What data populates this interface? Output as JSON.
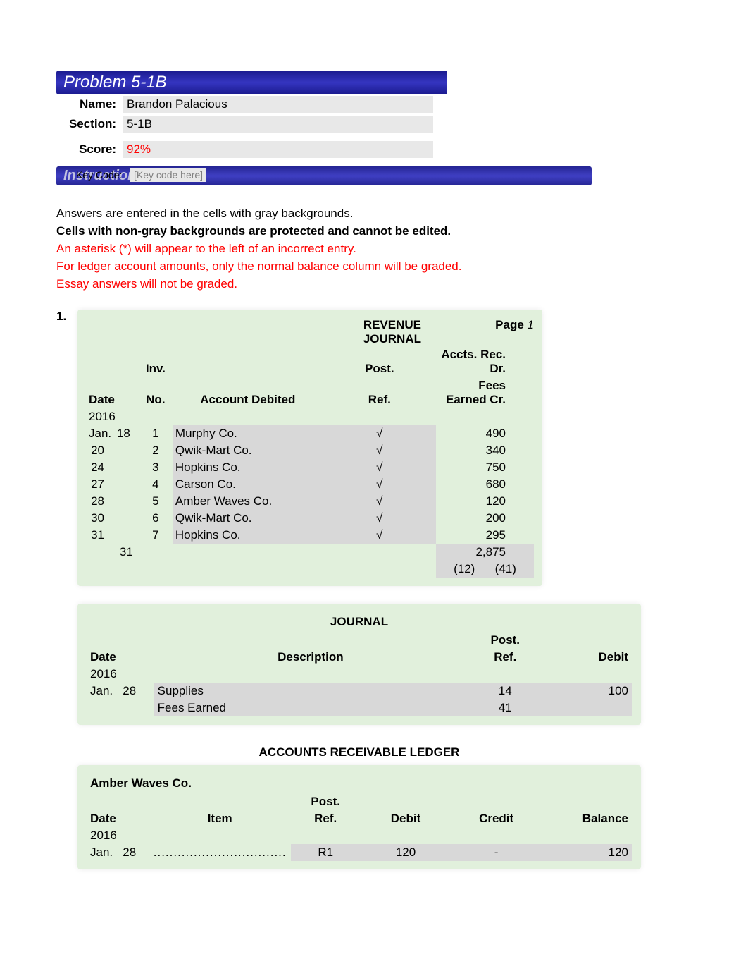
{
  "colors": {
    "header_bg": "#2525a8",
    "header_text": "#ffffff",
    "section_bg": "#e1f0dc",
    "gray_cell": "#d8d8d8",
    "red_text": "#ff0000",
    "body_text": "#000000",
    "placeholder": "#808080"
  },
  "problem_title": "Problem 5-1B",
  "info": {
    "name_label": "Name:",
    "name_value": "Brandon Palacious",
    "section_label": "Section:",
    "section_value": "5-1B",
    "score_label": "Score:",
    "score_value": "92%",
    "keycode_label": "Key Code:",
    "keycode_value": "[Key code here]"
  },
  "instructions_label": "Instructions",
  "instructions": {
    "line1": "Answers are entered in the cells with gray backgrounds.",
    "line2": "Cells with non-gray backgrounds are protected and cannot be edited.",
    "line3": "An asterisk (*) will appear to the left of an incorrect entry.",
    "line4": "For ledger account amounts, only the normal balance column will be graded.",
    "line5": "Essay answers will not be graded."
  },
  "section_number": "1.",
  "revenue_journal": {
    "title": "REVENUE JOURNAL",
    "page_label": "Page",
    "page_number": "1",
    "headers": {
      "date": "Date",
      "inv_no_top": "Inv.",
      "inv_no_bot": "No.",
      "account": "Account Debited",
      "post_top": "Post.",
      "post_bot": "Ref.",
      "amount_top": "Accts. Rec. Dr.",
      "amount_bot": "Fees Earned Cr."
    },
    "year": "2016",
    "rows": [
      {
        "month": "Jan.",
        "day": "18",
        "inv": "1",
        "account": "Murphy Co.",
        "post": "√",
        "amount": "490"
      },
      {
        "month": "",
        "day": "20",
        "inv": "2",
        "account": "Qwik-Mart Co.",
        "post": "√",
        "amount": "340"
      },
      {
        "month": "",
        "day": "24",
        "inv": "3",
        "account": "Hopkins Co.",
        "post": "√",
        "amount": "750"
      },
      {
        "month": "",
        "day": "27",
        "inv": "4",
        "account": "Carson Co.",
        "post": "√",
        "amount": "680"
      },
      {
        "month": "",
        "day": "28",
        "inv": "5",
        "account": "Amber Waves Co.",
        "post": "√",
        "amount": "120"
      },
      {
        "month": "",
        "day": "30",
        "inv": "6",
        "account": "Qwik-Mart Co.",
        "post": "√",
        "amount": "200"
      },
      {
        "month": "",
        "day": "31",
        "inv": "7",
        "account": "Hopkins Co.",
        "post": "√",
        "amount": "295"
      }
    ],
    "total_day": "31",
    "total_amount": "2,875",
    "total_refs": "(12)      (41)"
  },
  "general_journal": {
    "title": "JOURNAL",
    "headers": {
      "date": "Date",
      "description": "Description",
      "post_top": "Post.",
      "post_bot": "Ref.",
      "debit": "Debit"
    },
    "year": "2016",
    "rows": [
      {
        "month": "Jan.",
        "day": "28",
        "desc": "Supplies",
        "post": "14",
        "debit": "100"
      },
      {
        "month": "",
        "day": "",
        "desc": "Fees Earned",
        "indent": true,
        "post": "41",
        "debit": ""
      }
    ]
  },
  "ar_ledger": {
    "title": "ACCOUNTS RECEIVABLE LEDGER",
    "account_name": "Amber Waves Co.",
    "headers": {
      "date": "Date",
      "item": "Item",
      "post_top": "Post.",
      "post_bot": "Ref.",
      "debit": "Debit",
      "credit": "Credit",
      "balance": "Balance"
    },
    "year": "2016",
    "rows": [
      {
        "month": "Jan.",
        "day": "28",
        "item": ".................................",
        "post": "R1",
        "debit": "120",
        "credit": "-",
        "balance": "120"
      }
    ]
  }
}
